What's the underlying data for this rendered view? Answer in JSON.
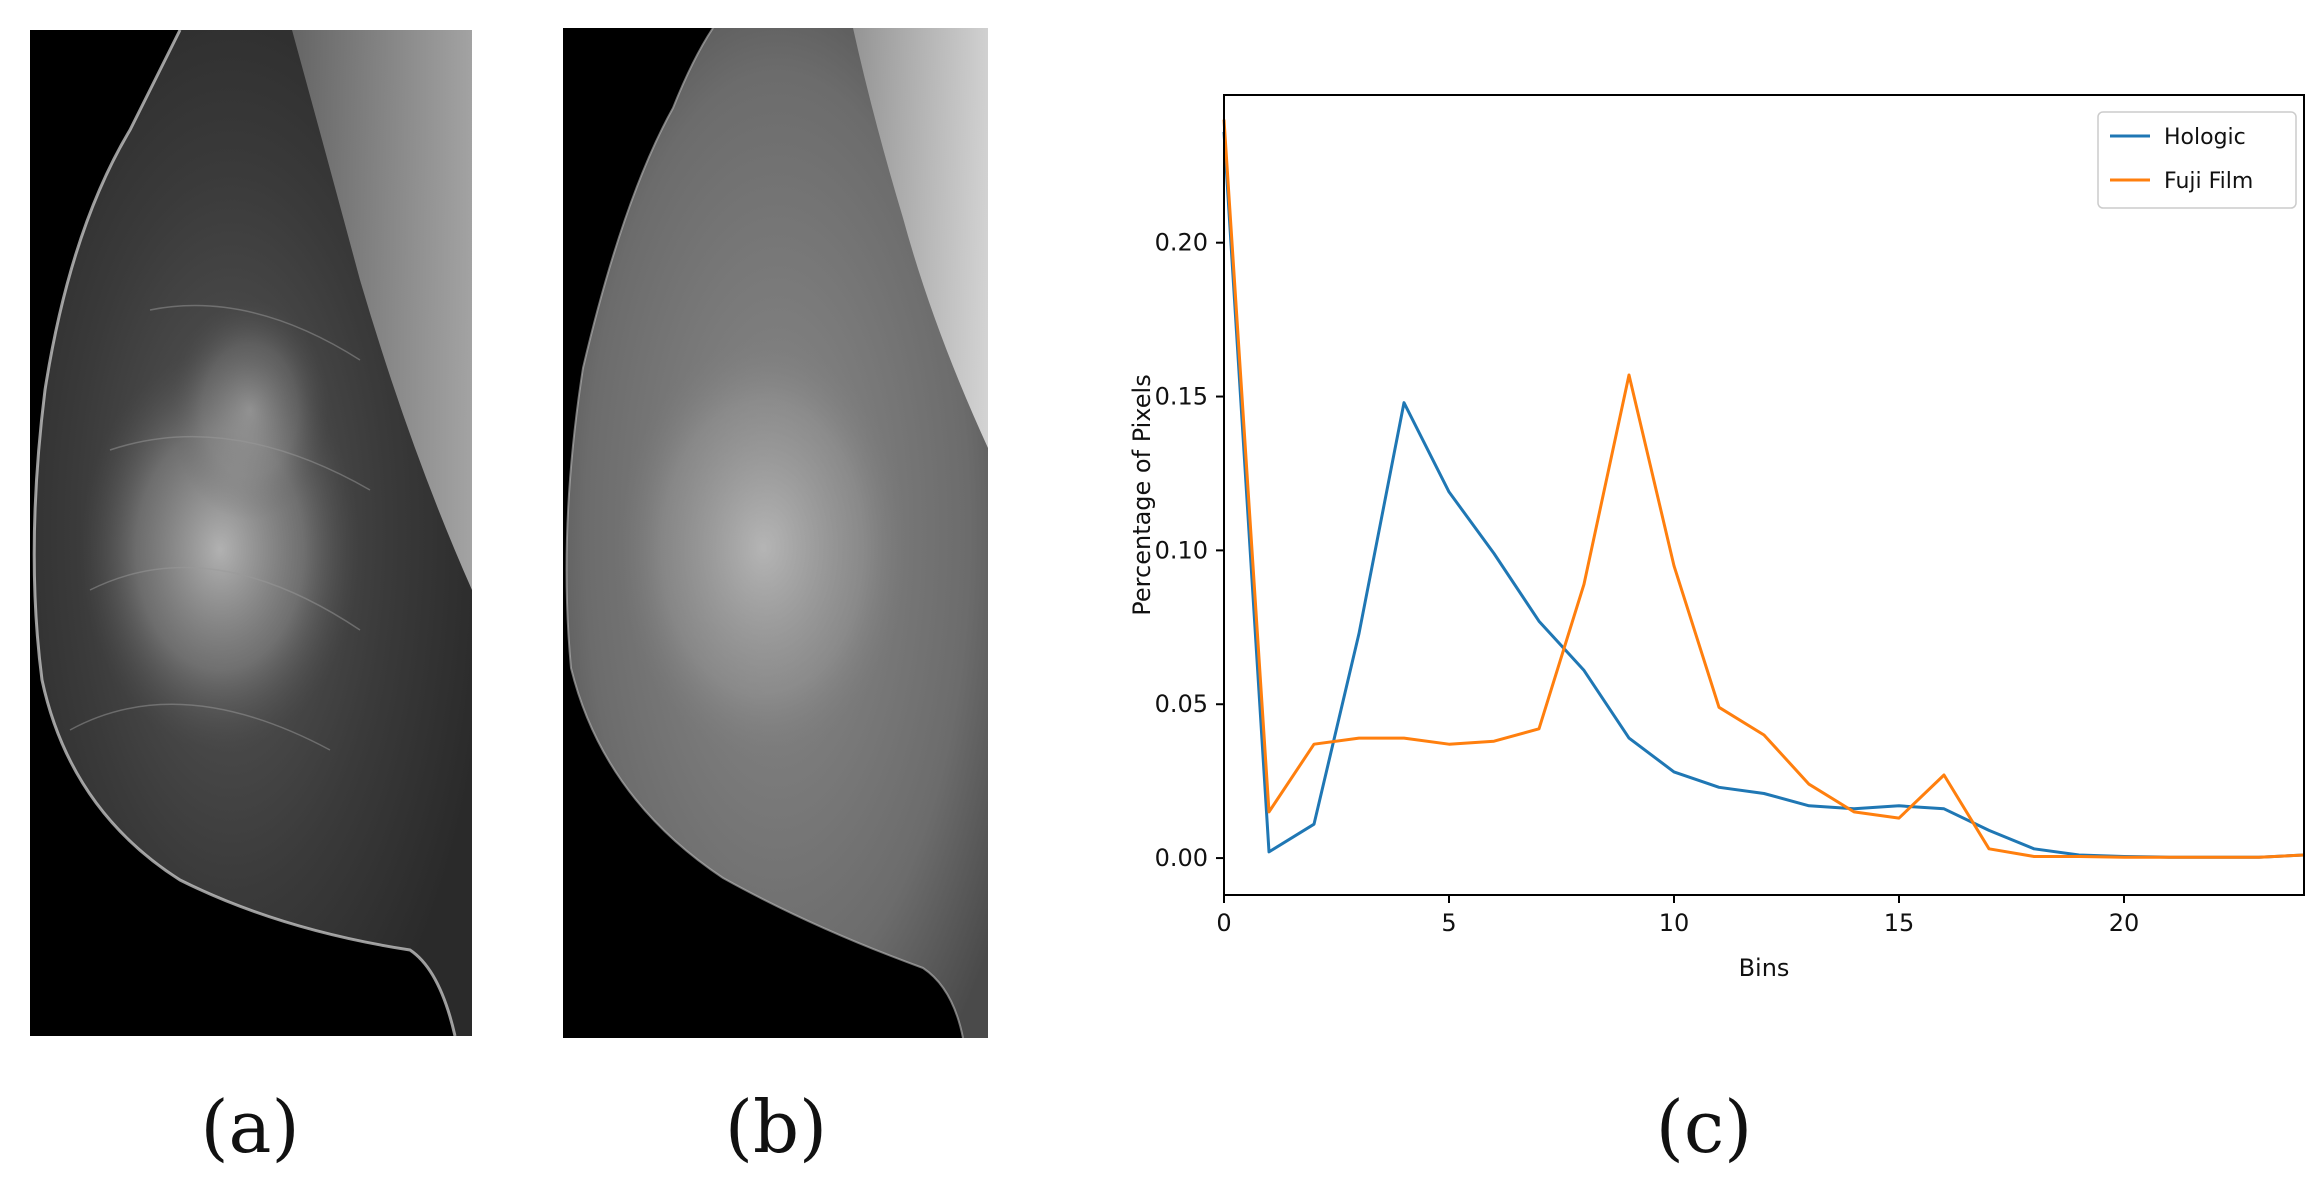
{
  "panels": {
    "a": {
      "caption": "(a)",
      "image_description": "mammogram (high-contrast, dark background)"
    },
    "b": {
      "caption": "(b)",
      "image_description": "mammogram (lower-contrast, gray)"
    },
    "c": {
      "caption": "(c)"
    }
  },
  "chart_data": {
    "type": "line",
    "xlabel": "Bins",
    "ylabel": "Percentage of Pixels",
    "xlim": [
      0,
      24
    ],
    "ylim": [
      -0.012,
      0.248
    ],
    "xticks": [
      0,
      5,
      10,
      15,
      20
    ],
    "yticks": [
      0.0,
      0.05,
      0.1,
      0.15,
      0.2
    ],
    "xtick_labels": [
      "0",
      "5",
      "10",
      "15",
      "20"
    ],
    "ytick_labels": [
      "0.00",
      "0.05",
      "0.10",
      "0.15",
      "0.20"
    ],
    "grid": false,
    "legend_position": "top-right",
    "x": [
      0,
      1,
      2,
      3,
      4,
      5,
      6,
      7,
      8,
      9,
      10,
      11,
      12,
      13,
      14,
      15,
      16,
      17,
      18,
      19,
      20,
      21,
      22,
      23,
      24
    ],
    "series": [
      {
        "name": "Hologic",
        "color": "#1f77b4",
        "values": [
          0.236,
          0.002,
          0.011,
          0.073,
          0.148,
          0.119,
          0.099,
          0.077,
          0.061,
          0.039,
          0.028,
          0.023,
          0.021,
          0.017,
          0.016,
          0.017,
          0.016,
          0.009,
          0.003,
          0.001,
          0.0005,
          0.0003,
          0.0003,
          0.0003,
          0.001
        ]
      },
      {
        "name": "Fuji Film",
        "color": "#ff7f0e",
        "values": [
          0.24,
          0.015,
          0.037,
          0.039,
          0.039,
          0.037,
          0.038,
          0.042,
          0.089,
          0.157,
          0.095,
          0.049,
          0.04,
          0.024,
          0.015,
          0.013,
          0.027,
          0.003,
          0.0005,
          0.0005,
          0.0003,
          0.0003,
          0.0003,
          0.0003,
          0.001
        ]
      }
    ]
  }
}
